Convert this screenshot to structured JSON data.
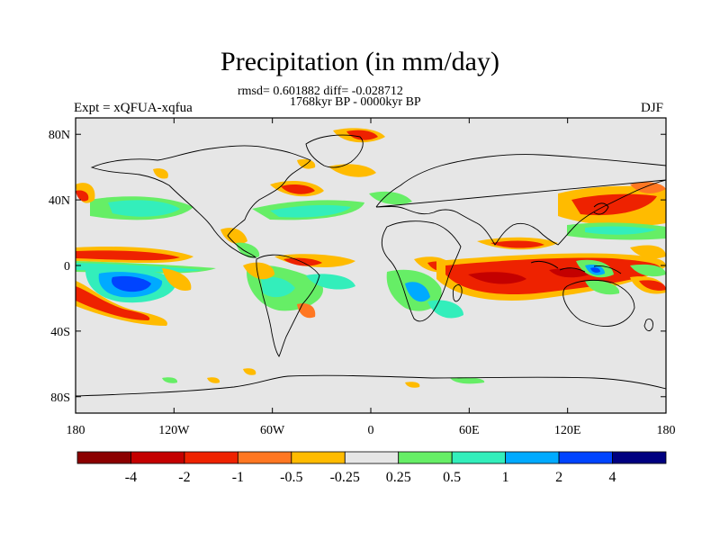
{
  "title": "Precipitation (in mm/day)",
  "subtitle_line1": "rmsd= 0.601882 diff= -0.028712",
  "subtitle_line2": "1768kyr BP - 0000kyr BP",
  "left_string": "Expt = xQFUA-xqfua",
  "right_string": "DJF",
  "y_axis": {
    "ticks": [
      {
        "label": "80N",
        "lat": 80
      },
      {
        "label": "40N",
        "lat": 40
      },
      {
        "label": "0",
        "lat": 0
      },
      {
        "label": "40S",
        "lat": -40
      },
      {
        "label": "80S",
        "lat": -80
      }
    ]
  },
  "x_axis": {
    "ticks": [
      {
        "label": "180",
        "lon": -180
      },
      {
        "label": "120W",
        "lon": -120
      },
      {
        "label": "60W",
        "lon": -60
      },
      {
        "label": "0",
        "lon": 0
      },
      {
        "label": "60E",
        "lon": 60
      },
      {
        "label": "120E",
        "lon": 120
      },
      {
        "label": "180",
        "lon": 180
      }
    ]
  },
  "colorbar": {
    "colors": [
      "#8b0000",
      "#c40000",
      "#ee2200",
      "#ff7722",
      "#ffbb00",
      "#e6e6e6",
      "#66ee66",
      "#33eebb",
      "#00aaff",
      "#0044ff",
      "#000080"
    ],
    "labels": [
      "-4",
      "-2",
      "-1",
      "-0.5",
      "-0.25",
      "0.25",
      "0.5",
      "1",
      "2",
      "4"
    ]
  },
  "map_background": "#e6e6e6"
}
